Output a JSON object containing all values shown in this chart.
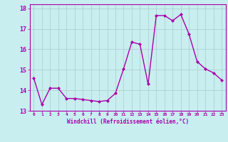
{
  "x": [
    0,
    1,
    2,
    3,
    4,
    5,
    6,
    7,
    8,
    9,
    10,
    11,
    12,
    13,
    14,
    15,
    16,
    17,
    18,
    19,
    20,
    21,
    22,
    23
  ],
  "y": [
    14.6,
    13.3,
    14.1,
    14.1,
    13.6,
    13.6,
    13.55,
    13.5,
    13.45,
    13.5,
    13.85,
    15.05,
    16.35,
    16.25,
    14.3,
    17.65,
    17.65,
    17.4,
    17.7,
    16.75,
    15.4,
    15.05,
    14.85,
    14.5
  ],
  "bg_color": "#c8eef0",
  "line_color": "#aa00aa",
  "marker_color": "#aa00aa",
  "grid_color": "#aacccc",
  "tick_color": "#aa00aa",
  "label_color": "#aa00aa",
  "xlabel": "Windchill (Refroidissement éolien,°C)",
  "ylim": [
    13.0,
    18.2
  ],
  "xlim": [
    -0.5,
    23.5
  ],
  "yticks": [
    13,
    14,
    15,
    16,
    17,
    18
  ],
  "xtick_labels": [
    "0",
    "1",
    "2",
    "3",
    "4",
    "5",
    "6",
    "7",
    "8",
    "9",
    "10",
    "11",
    "12",
    "13",
    "14",
    "15",
    "16",
    "17",
    "18",
    "19",
    "20",
    "21",
    "22",
    "23"
  ]
}
